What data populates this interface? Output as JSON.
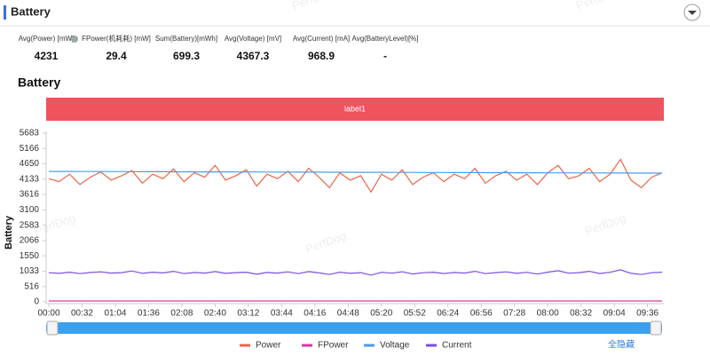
{
  "header": {
    "title": "Battery"
  },
  "stats": [
    {
      "label": "Avg(Power) [mW]",
      "value": 4231
    },
    {
      "label": "FPower(机耗耗) [mW]",
      "value": 29.4
    },
    {
      "label": "Sum(Battery)[mWh]",
      "value": 699.3
    },
    {
      "label": "Avg(Voltage) [mV]",
      "value": 4367.3
    },
    {
      "label": "Avg(Current) [mA]",
      "value": 968.9
    },
    {
      "label": "Avg(BatteryLevel)[%]",
      "value": "-"
    }
  ],
  "watermark": "PerfDog",
  "hide_all": "全隐藏",
  "chart_data": {
    "type": "line",
    "title": "Battery",
    "band_label": "label1",
    "ylabel": "Battery",
    "x": [
      0,
      10,
      20,
      30,
      40,
      50,
      60,
      70,
      80,
      90,
      100,
      110,
      120,
      130,
      140,
      150,
      160,
      170,
      180,
      190,
      200,
      210,
      220,
      230,
      240,
      250,
      260,
      270,
      280,
      290,
      300,
      310,
      320,
      330,
      340,
      350,
      360,
      370,
      380,
      390,
      400,
      410,
      420,
      430,
      440,
      450,
      460,
      470,
      480,
      490,
      500,
      510,
      520,
      530,
      540,
      550,
      560,
      570,
      580,
      590
    ],
    "xlim": [
      0,
      590
    ],
    "xticks": [
      {
        "value": 0,
        "label": "00:00"
      },
      {
        "value": 32,
        "label": "00:32"
      },
      {
        "value": 64,
        "label": "01:04"
      },
      {
        "value": 96,
        "label": "01:36"
      },
      {
        "value": 128,
        "label": "02:08"
      },
      {
        "value": 160,
        "label": "02:40"
      },
      {
        "value": 192,
        "label": "03:12"
      },
      {
        "value": 224,
        "label": "03:44"
      },
      {
        "value": 256,
        "label": "04:16"
      },
      {
        "value": 288,
        "label": "04:48"
      },
      {
        "value": 320,
        "label": "05:20"
      },
      {
        "value": 352,
        "label": "05:52"
      },
      {
        "value": 384,
        "label": "06:24"
      },
      {
        "value": 416,
        "label": "06:56"
      },
      {
        "value": 448,
        "label": "07:28"
      },
      {
        "value": 480,
        "label": "08:00"
      },
      {
        "value": 512,
        "label": "08:32"
      },
      {
        "value": 544,
        "label": "09:04"
      },
      {
        "value": 576,
        "label": "09:36"
      }
    ],
    "ylim": [
      0,
      5683
    ],
    "yticks": [
      0,
      516,
      1033,
      1550,
      2066,
      2583,
      3100,
      3616,
      4133,
      4650,
      5166,
      5683
    ],
    "grid": false,
    "series": [
      {
        "name": "Power",
        "color": "#e8664a",
        "values": [
          4150,
          4050,
          4300,
          3950,
          4200,
          4380,
          4100,
          4250,
          4420,
          4000,
          4300,
          4150,
          4480,
          4050,
          4350,
          4200,
          4600,
          4100,
          4250,
          4450,
          3900,
          4300,
          4150,
          4400,
          4050,
          4500,
          4200,
          3850,
          4350,
          4100,
          4250,
          3700,
          4300,
          4100,
          4450,
          3950,
          4200,
          4350,
          4050,
          4300,
          4150,
          4500,
          4000,
          4250,
          4400,
          4100,
          4300,
          3950,
          4350,
          4600,
          4150,
          4250,
          4500,
          4050,
          4300,
          4800,
          4100,
          3850,
          4200,
          4350
        ]
      },
      {
        "name": "FPower",
        "color": "#d63aa5",
        "values": [
          29,
          30,
          29,
          29,
          30,
          29,
          30,
          29,
          29,
          30,
          29,
          30,
          29,
          29,
          30,
          29,
          30,
          29,
          29,
          30,
          29,
          30,
          29,
          29,
          30,
          29,
          30,
          29,
          29,
          30,
          29,
          30,
          29,
          29,
          30,
          29,
          30,
          29,
          29,
          30,
          29,
          30,
          29,
          29,
          30,
          29,
          30,
          29,
          29,
          30,
          29,
          30,
          29,
          29,
          30,
          29,
          30,
          29,
          29,
          30
        ]
      },
      {
        "name": "Voltage",
        "color": "#4a9de8",
        "values": [
          4395,
          4394,
          4393,
          4392,
          4391,
          4390,
          4389,
          4388,
          4387,
          4386,
          4385,
          4384,
          4383,
          4382,
          4381,
          4380,
          4379,
          4378,
          4377,
          4376,
          4375,
          4374,
          4373,
          4372,
          4371,
          4370,
          4369,
          4368,
          4367,
          4366,
          4365,
          4364,
          4363,
          4362,
          4361,
          4360,
          4359,
          4358,
          4357,
          4356,
          4355,
          4354,
          4353,
          4352,
          4351,
          4350,
          4349,
          4348,
          4347,
          4346,
          4345,
          4344,
          4343,
          4342,
          4341,
          4340,
          4339,
          4338,
          4337,
          4336
        ]
      },
      {
        "name": "Current",
        "color": "#7b4fe0",
        "values": [
          980,
          960,
          1000,
          950,
          990,
          1010,
          970,
          985,
          1040,
          960,
          1000,
          975,
          1030,
          950,
          990,
          970,
          1020,
          960,
          985,
          1000,
          930,
          990,
          970,
          1010,
          950,
          1020,
          975,
          920,
          1000,
          960,
          985,
          900,
          995,
          965,
          1015,
          940,
          980,
          1000,
          955,
          990,
          970,
          1030,
          950,
          985,
          1010,
          960,
          995,
          935,
          1000,
          1050,
          965,
          985,
          1030,
          955,
          995,
          1080,
          960,
          920,
          980,
          1000
        ]
      }
    ]
  }
}
